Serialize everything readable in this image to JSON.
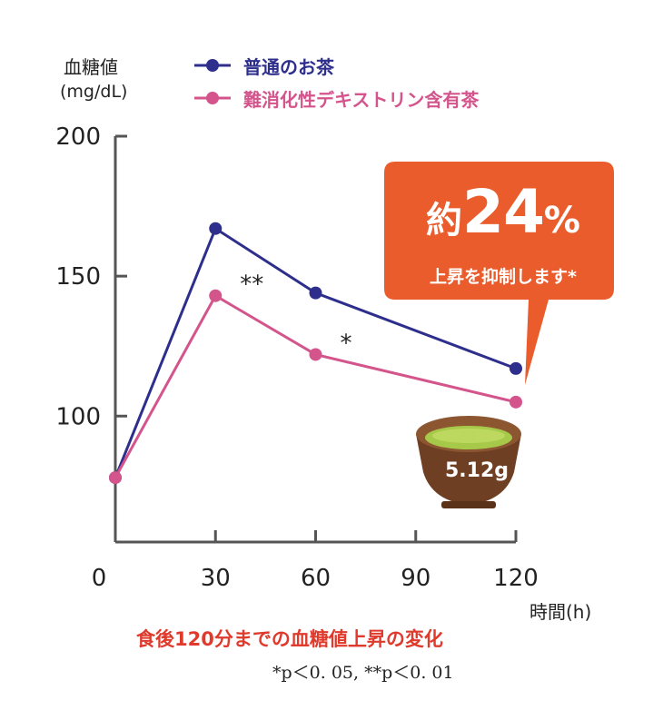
{
  "chart_data": {
    "type": "line",
    "y_axis_label": "血糖値",
    "y_axis_unit": "(mg/dL)",
    "x_axis_unit": "時間(h)",
    "x_ticks": [
      "0",
      "30",
      "60",
      "90",
      "120"
    ],
    "y_ticks": [
      "100",
      "150",
      "200"
    ],
    "xlim": [
      0,
      120
    ],
    "ylim": [
      55,
      200
    ],
    "series": [
      {
        "name": "普通のお茶",
        "color": "#2e2f8c",
        "x": [
          0,
          30,
          60,
          120
        ],
        "y": [
          78,
          167,
          144,
          117
        ]
      },
      {
        "name": "難消化性デキストリン含有茶",
        "color": "#d4548c",
        "x": [
          0,
          30,
          60,
          120
        ],
        "y": [
          78,
          143,
          122,
          105
        ]
      }
    ],
    "annotations": [
      {
        "text": "**",
        "x": 30,
        "y": 143
      },
      {
        "text": "*",
        "x": 60,
        "y": 122
      }
    ],
    "caption": "食後120分までの血糖値上昇の変化",
    "significance": "*p＜0. 05,  **p＜0. 01"
  },
  "callout": {
    "prefix": "約",
    "value": "24",
    "unit": "%",
    "subtext": "上昇を抑制します*",
    "color": "#ea5c2b"
  },
  "dose_label": "5.12g",
  "icons": {
    "tea_cup": "tea-cup-icon"
  }
}
